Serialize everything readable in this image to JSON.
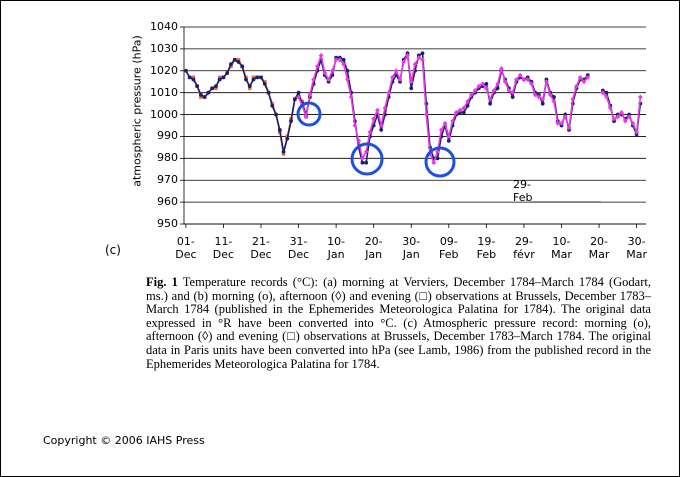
{
  "panel_label": "(c)",
  "caption": {
    "label": "Fig. 1",
    "text": "Temperature records (°C): (a) morning at Verviers, December 1784–March 1784 (Godart, ms.) and (b) morning (o), afternoon (◊) and evening (□) observations at Brussels, December 1783–March 1784 (published in the Ephemerides Meteorologica Palatina for 1784). The original data expressed in °R have been converted into °C. (c) Atmospheric pressure record: morning (o), afternoon (◊) and evening (□) observations at Brussels, December 1783–March 1784. The original data in Paris units have been converted into hPa (see Lamb, 1986) from the published record in the Ephemerides Meteorologica Palatina for 1784."
  },
  "copyright": "Copyright © 2006 IAHS Press",
  "chart_data": {
    "type": "line",
    "y_label": "atmospheric pressure (hPa)",
    "annotation": "29-\nFeb",
    "xlim": [
      -0.5,
      122.5
    ],
    "xticks": [
      {
        "value": 0,
        "label": "01-\nDec"
      },
      {
        "value": 10,
        "label": "11-\nDec"
      },
      {
        "value": 20,
        "label": "21-\nDec"
      },
      {
        "value": 30,
        "label": "31-\nDec"
      },
      {
        "value": 40,
        "label": "10-\nJan"
      },
      {
        "value": 50,
        "label": "20-\nJan"
      },
      {
        "value": 60,
        "label": "30-\nJan"
      },
      {
        "value": 70,
        "label": "09-\nFeb"
      },
      {
        "value": 80,
        "label": "19-\nFeb"
      },
      {
        "value": 90,
        "label": "29-\nfévr"
      },
      {
        "value": 100,
        "label": "10-\nMar"
      },
      {
        "value": 110,
        "label": "20-\nMar"
      },
      {
        "value": 120,
        "label": "30-\nMar"
      }
    ],
    "ylim": [
      950,
      1040
    ],
    "yticks": [
      950,
      960,
      970,
      980,
      990,
      1000,
      1010,
      1020,
      1030,
      1040
    ],
    "grid": true,
    "x": [
      0,
      1,
      2,
      3,
      4,
      5,
      6,
      7,
      8,
      9,
      10,
      11,
      12,
      13,
      14,
      15,
      16,
      17,
      18,
      19,
      20,
      21,
      22,
      23,
      24,
      25,
      26,
      27,
      28,
      29,
      30,
      31,
      32,
      33,
      34,
      35,
      36,
      37,
      38,
      39,
      40,
      41,
      42,
      43,
      44,
      45,
      46,
      47,
      48,
      49,
      50,
      51,
      52,
      53,
      54,
      55,
      56,
      57,
      58,
      59,
      60,
      61,
      62,
      63,
      64,
      65,
      66,
      67,
      68,
      69,
      70,
      71,
      72,
      73,
      74,
      75,
      76,
      77,
      78,
      79,
      80,
      81,
      82,
      83,
      84,
      85,
      86,
      87,
      88,
      89,
      90,
      91,
      92,
      93,
      94,
      95,
      96,
      97,
      98,
      99,
      100,
      101,
      102,
      103,
      104,
      105,
      106,
      107,
      108,
      109,
      110,
      111,
      112,
      113,
      114,
      115,
      116,
      117,
      118,
      119,
      120,
      121
    ],
    "series": [
      {
        "color": "#f26b3a",
        "marker": "square",
        "values": [
          1020,
          1017,
          1017,
          1013,
          1008,
          1008,
          1010,
          1012,
          1012,
          1017,
          1017,
          1019,
          1022,
          1025,
          1025,
          1022,
          1017,
          1012,
          1017,
          1017,
          1017,
          1015,
          1010,
          1005,
          1000,
          992,
          982,
          990,
          998,
          1007,
          1008,
          1006,
          999,
          1008,
          null,
          null,
          null,
          null,
          null,
          null,
          null,
          null,
          null,
          null,
          null,
          null,
          null,
          null,
          null,
          null,
          null,
          null,
          null,
          null,
          null,
          null,
          null,
          null,
          null,
          null,
          null,
          null,
          null,
          null,
          null,
          null,
          null,
          null,
          null,
          null,
          null,
          null,
          null,
          null,
          null,
          null,
          null,
          null,
          null,
          null,
          null,
          null,
          null,
          null,
          null,
          null,
          null,
          null,
          null,
          null,
          null,
          null,
          null,
          null,
          null,
          null,
          null,
          null,
          null,
          null,
          null,
          null,
          null,
          null,
          null,
          null,
          null,
          null,
          null,
          null,
          null,
          null,
          null,
          null,
          null,
          null,
          null,
          null,
          null,
          null,
          null,
          null
        ]
      },
      {
        "color": "#1c1f6b",
        "marker": "circle",
        "values": [
          1020,
          1017,
          1016,
          1013,
          1009,
          1008,
          1010,
          1012,
          1013,
          1016,
          1017,
          1019,
          1023,
          1025,
          1024,
          1022,
          1016,
          1013,
          1016,
          1017,
          1017,
          1014,
          1010,
          1004,
          1000,
          993,
          983,
          989,
          997,
          1007,
          1010,
          1005,
          1000,
          1008,
          1014,
          1020,
          1025,
          1018,
          1015,
          1018,
          1026,
          1026,
          1025,
          1020,
          1010,
          997,
          985,
          978,
          978,
          990,
          995,
          1000,
          993,
          1000,
          1008,
          1015,
          1018,
          1015,
          1025,
          1028,
          1012,
          1020,
          1027,
          1028,
          1005,
          985,
          980,
          980,
          990,
          995,
          988,
          995,
          1000,
          1001,
          1001,
          1004,
          1008,
          1010,
          1012,
          1013,
          1014,
          1005,
          1010,
          1012,
          1020,
          1016,
          1012,
          1008,
          1015,
          1017,
          1016,
          1017,
          1015,
          1010,
          1009,
          1005,
          1016,
          1010,
          1008,
          997,
          995,
          1000,
          993,
          1005,
          1012,
          1016,
          1016,
          1018,
          null,
          null,
          null,
          1011,
          1010,
          1004,
          997,
          1000,
          1000,
          998,
          1000,
          995,
          991,
          1005
        ]
      },
      {
        "color": "#e63be6",
        "marker": "diamond",
        "values": [
          null,
          null,
          null,
          null,
          null,
          null,
          null,
          null,
          null,
          null,
          null,
          null,
          null,
          null,
          null,
          null,
          null,
          null,
          null,
          null,
          null,
          null,
          null,
          null,
          null,
          null,
          null,
          null,
          null,
          null,
          1008,
          1004,
          999,
          1009,
          1016,
          1022,
          1027,
          1019,
          1016,
          1020,
          1025,
          1025,
          1023,
          1016,
          1008,
          995,
          988,
          980,
          983,
          992,
          998,
          1002,
          995,
          1003,
          1010,
          1017,
          1020,
          1016,
          1024,
          1027,
          1015,
          1023,
          1026,
          1025,
          1000,
          982,
          978,
          983,
          993,
          996,
          990,
          997,
          1001,
          1002,
          1003,
          1006,
          1009,
          1011,
          1013,
          1014,
          1012,
          1007,
          1011,
          1014,
          1021,
          1015,
          1011,
          1010,
          1016,
          1018,
          1016,
          1016,
          1014,
          1009,
          1008,
          1007,
          1015,
          1009,
          1006,
          996,
          996,
          999,
          994,
          1007,
          1013,
          1017,
          1015,
          1017,
          null,
          null,
          null,
          1010,
          1008,
          1003,
          998,
          999,
          1001,
          997,
          999,
          996,
          992,
          1008
        ]
      }
    ]
  }
}
